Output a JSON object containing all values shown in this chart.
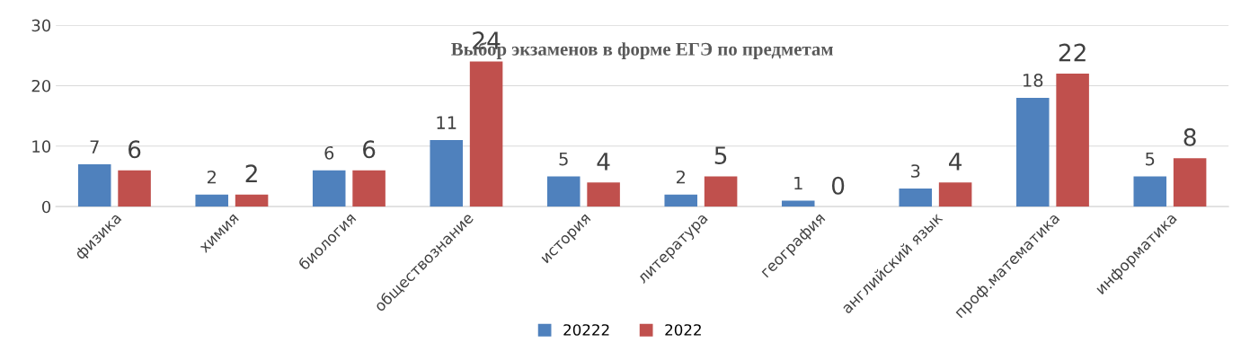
{
  "chart_data": {
    "type": "bar",
    "title": "Выбор экзаменов в форме ЕГЭ по предметам",
    "categories": [
      "физика",
      "химия",
      "биология",
      "обществознание",
      "история",
      "литература",
      "география",
      "английский язык",
      "проф.математика",
      "информатика"
    ],
    "series": [
      {
        "name": "20222",
        "color": "#4f81bd",
        "values": [
          7,
          2,
          6,
          11,
          5,
          2,
          1,
          3,
          18,
          5
        ]
      },
      {
        "name": "2022",
        "color": "#c0504d",
        "values": [
          6,
          2,
          6,
          24,
          4,
          5,
          0,
          4,
          22,
          8
        ]
      }
    ],
    "ylim": [
      0,
      30
    ],
    "yticks": [
      0,
      10,
      20,
      30
    ],
    "grid": "y",
    "legend": "bottom",
    "data_labels": true
  }
}
